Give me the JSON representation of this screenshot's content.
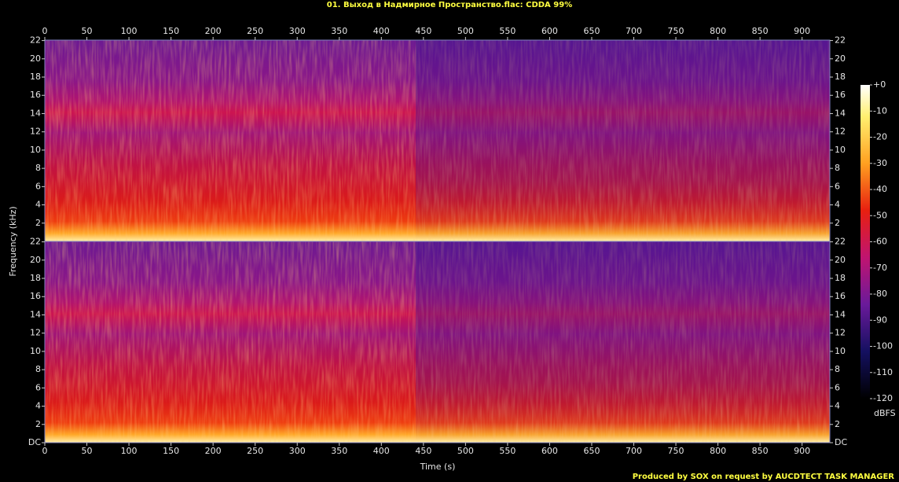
{
  "chart_data": [
    {
      "type": "spectrogram",
      "title": "01. Выход в Надмирное Пространство.flac: CDDA 99%",
      "y_label": "Frequency (kHz)",
      "xlim": [
        0,
        933
      ],
      "xticks": [
        0,
        50,
        100,
        150,
        200,
        250,
        300,
        350,
        400,
        450,
        500,
        550,
        600,
        650,
        700,
        750,
        800,
        850,
        900
      ],
      "ylim": [
        0,
        22.05
      ],
      "yticks": [
        2,
        4,
        6,
        8,
        10,
        12,
        14,
        16,
        18,
        20,
        22
      ]
    },
    {
      "type": "spectrogram",
      "x_label": "Time (s)",
      "xlim": [
        0,
        933
      ],
      "xticks": [
        0,
        50,
        100,
        150,
        200,
        250,
        300,
        350,
        400,
        450,
        500,
        550,
        600,
        650,
        700,
        750,
        800,
        850,
        900
      ],
      "ylim": [
        0,
        22.05
      ],
      "yticks": [
        {
          "value": 0,
          "label": "DC"
        },
        2,
        4,
        6,
        8,
        10,
        12,
        14,
        16,
        18,
        20,
        22
      ]
    }
  ],
  "colorbar": {
    "label": "dBFS",
    "lim": [
      -120,
      0
    ],
    "ticks": [
      {
        "value": 0,
        "label": "+0"
      },
      -10,
      -20,
      -30,
      -40,
      -50,
      -60,
      -70,
      -80,
      -90,
      -100,
      -110,
      -120
    ]
  },
  "footer": "Produced by SOX on request by AUCDTECT TASK MANAGER"
}
